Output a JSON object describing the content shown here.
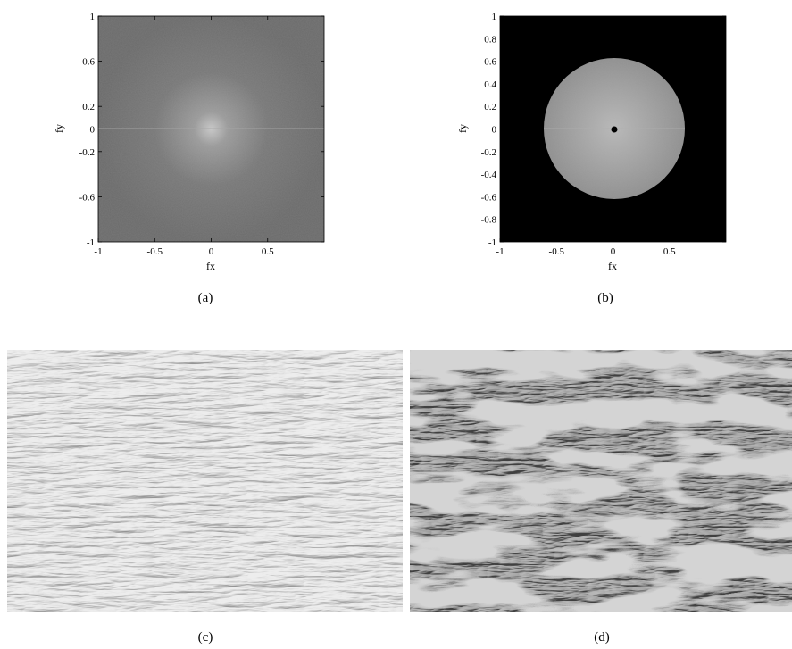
{
  "panel_a": {
    "x_axis_label": "fx",
    "y_axis_label": "fy",
    "x_ticks": [
      "-1",
      "-0.5",
      "0",
      "0.5"
    ],
    "y_ticks": [
      "1",
      "0.6",
      "0.2",
      "0",
      "-0.2",
      "-0.6",
      "-1"
    ],
    "caption": "(a)"
  },
  "panel_b": {
    "x_axis_label": "fx",
    "y_axis_label": "fy",
    "x_ticks": [
      "-1",
      "-0.5",
      "0",
      "0.5"
    ],
    "y_ticks": [
      "1",
      "0.8",
      "0.6",
      "0.4",
      "0.2",
      "0",
      "-0.2",
      "-0.4",
      "-0.6",
      "-0.8",
      "-1"
    ],
    "caption": "(b)"
  },
  "panel_c": {
    "caption": "(c)"
  },
  "panel_d": {
    "caption": "(d)"
  },
  "colors": {
    "spectrum_background": "#707070",
    "mask_background": "#000000",
    "mask_disk": "#9a9a9a",
    "texture_light": "#c8c8c8",
    "texture_dark": "#3a3a3a"
  }
}
